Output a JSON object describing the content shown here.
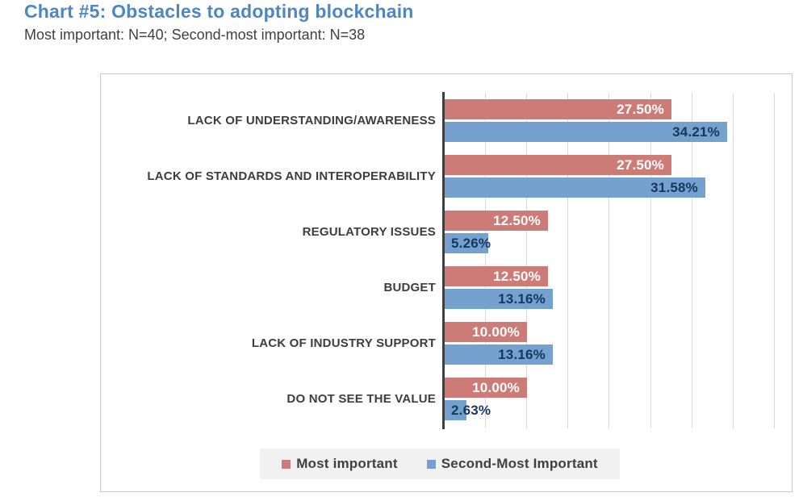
{
  "header": {
    "title": "Chart #5: Obstacles to adopting blockchain",
    "subtitle": "Most important: N=40; Second-most important: N=38"
  },
  "colors": {
    "title_blue": "#4E86C1",
    "text_dark": "#3F3F44",
    "category_label": "#3C3C44",
    "bar_red": "#CD7B76",
    "bar_blue": "#74A1CE",
    "label_on_red": "#FFFFFF",
    "label_on_blue": "#17375E",
    "axis_line": "#3F3F3F",
    "gridline": "#D8D8D8",
    "legend_bg": "#F1F1F1",
    "box_border": "#C9C9C9"
  },
  "chart_data": {
    "type": "bar",
    "orientation": "horizontal",
    "title": "Chart #5: Obstacles to adopting blockchain",
    "subtitle": "Most important: N=40; Second-most important: N=38",
    "categories": [
      "LACK OF UNDERSTANDING/AWARENESS",
      "LACK OF STANDARDS AND INTEROPERABILITY",
      "REGULATORY ISSUES",
      "BUDGET",
      "LACK OF INDUSTRY SUPPORT",
      "DO NOT SEE THE VALUE"
    ],
    "series": [
      {
        "name": "Most important",
        "n": 40,
        "values": [
          27.5,
          27.5,
          12.5,
          12.5,
          10.0,
          10.0
        ],
        "labels": [
          "27.50%",
          "27.50%",
          "12.50%",
          "12.50%",
          "10.00%",
          "10.00%"
        ],
        "bar_color": "#CD7B76",
        "label_color": "#FFFFFF"
      },
      {
        "name": "Second-Most Important",
        "n": 38,
        "values": [
          34.21,
          31.58,
          5.26,
          13.16,
          13.16,
          2.63
        ],
        "labels": [
          "34.21%",
          "31.58%",
          "5.26%",
          "13.16%",
          "13.16%",
          "2.63%"
        ],
        "bar_color": "#74A1CE",
        "label_color": "#17375E"
      }
    ],
    "xlim": [
      0,
      40
    ],
    "gridline_interval": 5,
    "grid": true,
    "value_labels": "inside-end",
    "legend_position": "bottom"
  }
}
